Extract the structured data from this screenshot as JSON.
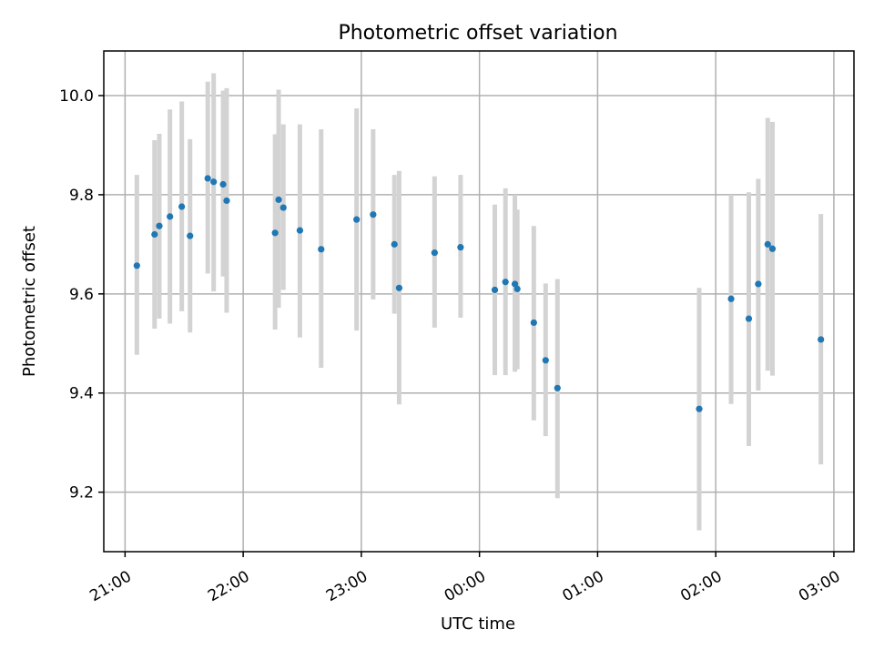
{
  "chart_data": {
    "type": "scatter",
    "title": "Photometric offset variation",
    "xlabel": "UTC time",
    "ylabel": "Photometric offset",
    "x_unit": "hours after 21:00 UTC",
    "xlim": [
      -0.18,
      6.17
    ],
    "ylim": [
      9.08,
      10.09
    ],
    "x_ticks": [
      {
        "value": 0,
        "label": "21:00"
      },
      {
        "value": 1,
        "label": "22:00"
      },
      {
        "value": 2,
        "label": "23:00"
      },
      {
        "value": 3,
        "label": "00:00"
      },
      {
        "value": 4,
        "label": "01:00"
      },
      {
        "value": 5,
        "label": "02:00"
      },
      {
        "value": 6,
        "label": "03:00"
      }
    ],
    "y_ticks": [
      {
        "value": 9.2,
        "label": "9.2"
      },
      {
        "value": 9.4,
        "label": "9.4"
      },
      {
        "value": 9.6,
        "label": "9.6"
      },
      {
        "value": 9.8,
        "label": "9.8"
      },
      {
        "value": 10.0,
        "label": "10.0"
      }
    ],
    "grid": true,
    "marker_color": "#1f77b4",
    "errorbar_color": "#d3d3d3",
    "series": [
      {
        "points": [
          {
            "x": 0.1,
            "y": 9.657,
            "lo": 9.477,
            "hi": 9.84
          },
          {
            "x": 0.25,
            "y": 9.72,
            "lo": 9.53,
            "hi": 9.91
          },
          {
            "x": 0.29,
            "y": 9.737,
            "lo": 9.55,
            "hi": 9.923
          },
          {
            "x": 0.38,
            "y": 9.756,
            "lo": 9.54,
            "hi": 9.972
          },
          {
            "x": 0.48,
            "y": 9.776,
            "lo": 9.565,
            "hi": 9.988
          },
          {
            "x": 0.55,
            "y": 9.717,
            "lo": 9.522,
            "hi": 9.912
          },
          {
            "x": 0.7,
            "y": 9.833,
            "lo": 9.641,
            "hi": 10.028
          },
          {
            "x": 0.75,
            "y": 9.826,
            "lo": 9.605,
            "hi": 10.045
          },
          {
            "x": 0.83,
            "y": 9.821,
            "lo": 9.635,
            "hi": 10.01
          },
          {
            "x": 0.86,
            "y": 9.788,
            "lo": 9.562,
            "hi": 10.015
          },
          {
            "x": 1.27,
            "y": 9.723,
            "lo": 9.528,
            "hi": 9.922
          },
          {
            "x": 1.3,
            "y": 9.79,
            "lo": 9.572,
            "hi": 10.012
          },
          {
            "x": 1.34,
            "y": 9.774,
            "lo": 9.608,
            "hi": 9.942
          },
          {
            "x": 1.48,
            "y": 9.728,
            "lo": 9.512,
            "hi": 9.942
          },
          {
            "x": 1.66,
            "y": 9.69,
            "lo": 9.451,
            "hi": 9.932
          },
          {
            "x": 1.96,
            "y": 9.75,
            "lo": 9.526,
            "hi": 9.974
          },
          {
            "x": 2.1,
            "y": 9.76,
            "lo": 9.589,
            "hi": 9.932
          },
          {
            "x": 2.28,
            "y": 9.7,
            "lo": 9.56,
            "hi": 9.84
          },
          {
            "x": 2.32,
            "y": 9.612,
            "lo": 9.377,
            "hi": 9.848
          },
          {
            "x": 2.62,
            "y": 9.683,
            "lo": 9.532,
            "hi": 9.837
          },
          {
            "x": 2.84,
            "y": 9.694,
            "lo": 9.552,
            "hi": 9.84
          },
          {
            "x": 3.13,
            "y": 9.608,
            "lo": 9.436,
            "hi": 9.78
          },
          {
            "x": 3.22,
            "y": 9.624,
            "lo": 9.436,
            "hi": 9.813
          },
          {
            "x": 3.3,
            "y": 9.62,
            "lo": 9.443,
            "hi": 9.8
          },
          {
            "x": 3.32,
            "y": 9.61,
            "lo": 9.448,
            "hi": 9.77
          },
          {
            "x": 3.46,
            "y": 9.542,
            "lo": 9.345,
            "hi": 9.737
          },
          {
            "x": 3.56,
            "y": 9.466,
            "lo": 9.313,
            "hi": 9.621
          },
          {
            "x": 3.66,
            "y": 9.41,
            "lo": 9.188,
            "hi": 9.63
          },
          {
            "x": 4.86,
            "y": 9.368,
            "lo": 9.123,
            "hi": 9.612
          },
          {
            "x": 5.13,
            "y": 9.59,
            "lo": 9.378,
            "hi": 9.8
          },
          {
            "x": 5.28,
            "y": 9.55,
            "lo": 9.293,
            "hi": 9.805
          },
          {
            "x": 5.36,
            "y": 9.62,
            "lo": 9.405,
            "hi": 9.832
          },
          {
            "x": 5.44,
            "y": 9.7,
            "lo": 9.445,
            "hi": 9.955
          },
          {
            "x": 5.48,
            "y": 9.691,
            "lo": 9.435,
            "hi": 9.947
          },
          {
            "x": 5.89,
            "y": 9.508,
            "lo": 9.256,
            "hi": 9.761
          }
        ]
      }
    ]
  }
}
